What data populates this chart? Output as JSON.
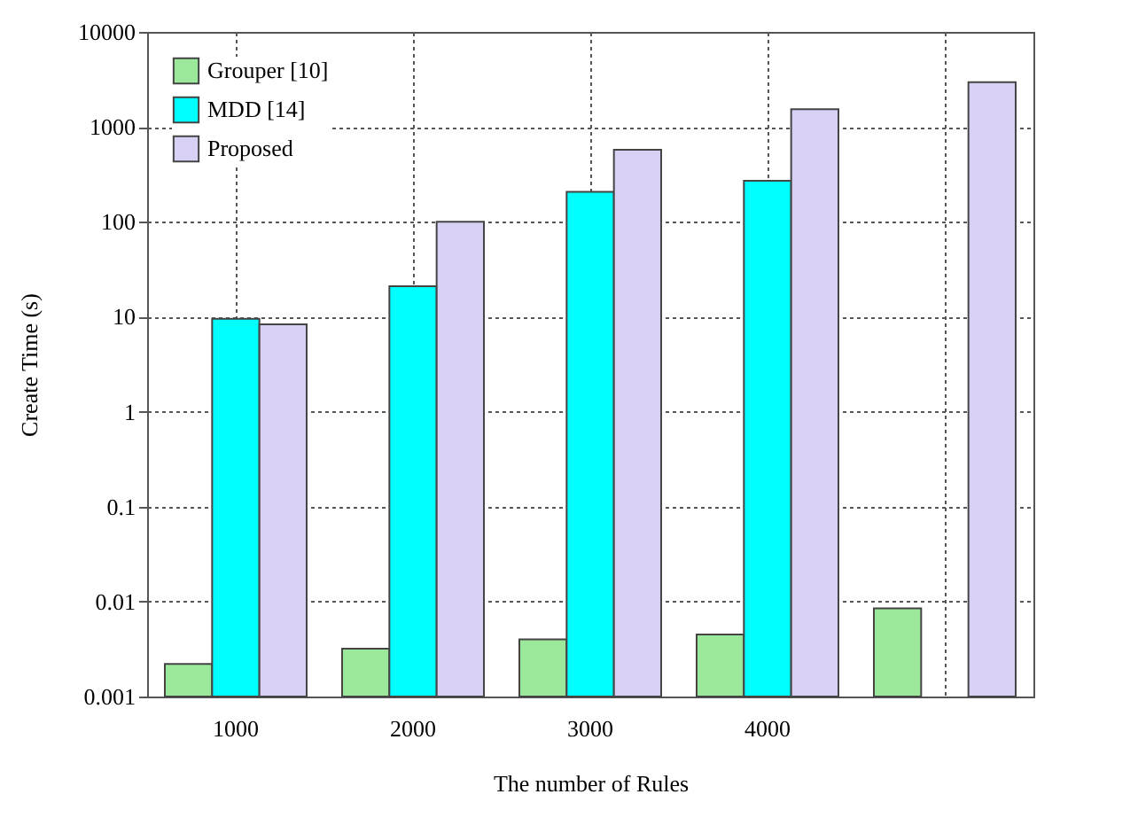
{
  "chart_data": {
    "type": "bar",
    "xlabel": "The number of Rules",
    "ylabel": "Create Time (s)",
    "categories": [
      "1000",
      "2000",
      "3000",
      "4000",
      null
    ],
    "series": [
      {
        "name": "Grouper [10]",
        "color": "#9be89b",
        "values": [
          0.0022,
          0.0032,
          0.004,
          0.0045,
          0.0085
        ]
      },
      {
        "name": "MDD [14]",
        "color": "#00ffff",
        "values": [
          9.5,
          21,
          207,
          270,
          null
        ]
      },
      {
        "name": "Proposed",
        "color": "#d9d0f5",
        "values": [
          8.3,
          100,
          573,
          1535,
          2950
        ]
      }
    ],
    "log": "y",
    "ylim": [
      0.001,
      10000
    ],
    "yticks": [
      0.001,
      0.01,
      0.1,
      1,
      10,
      100,
      1000,
      10000
    ],
    "grid": true,
    "legend": "top left"
  }
}
